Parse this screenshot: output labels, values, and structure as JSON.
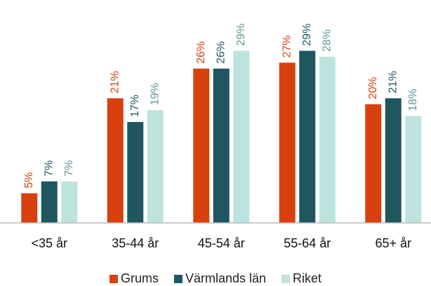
{
  "chart_data": {
    "type": "bar",
    "categories": [
      "<35 år",
      "35-44 år",
      "45-54 år",
      "55-64 år",
      "65+ år"
    ],
    "series": [
      {
        "name": "Grums",
        "color": "#d9400f",
        "label_color": "#d9400f",
        "values": [
          5,
          21,
          26,
          27,
          20
        ],
        "value_labels": [
          "5%",
          "21%",
          "26%",
          "27%",
          "20%"
        ]
      },
      {
        "name": "Värmlands län",
        "color": "#1f5660",
        "label_color": "#1f5660",
        "values": [
          7,
          17,
          26,
          29,
          21
        ],
        "value_labels": [
          "7%",
          "17%",
          "26%",
          "29%",
          "21%"
        ]
      },
      {
        "name": "Riket",
        "color": "#bde3de",
        "label_color": "#5e9595",
        "values": [
          7,
          19,
          29,
          28,
          18
        ],
        "value_labels": [
          "7%",
          "19%",
          "29%",
          "28%",
          "18%"
        ]
      }
    ],
    "ylim": [
      0,
      30
    ],
    "legend": "bottom"
  }
}
